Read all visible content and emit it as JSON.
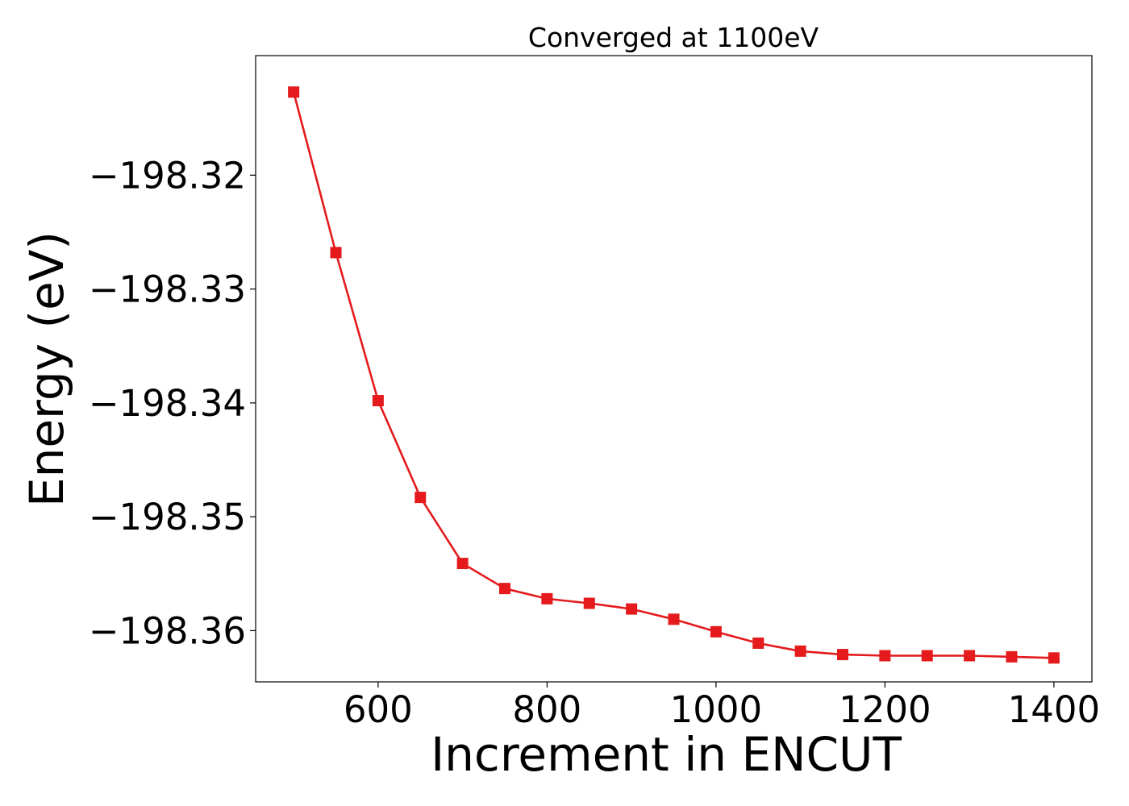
{
  "chart_data": {
    "type": "line",
    "title": "Converged at 1100eV",
    "xlabel": "Increment in ENCUT",
    "ylabel": "Energy (eV)",
    "xlim": [
      455,
      1445
    ],
    "ylim": [
      -198.3645,
      -198.3095
    ],
    "x_ticks": [
      600,
      800,
      1000,
      1200,
      1400
    ],
    "x_tick_labels": [
      "600",
      "800",
      "1000",
      "1200",
      "1400"
    ],
    "y_ticks": [
      -198.32,
      -198.33,
      -198.34,
      -198.35,
      -198.36
    ],
    "y_tick_labels": [
      "−198.32",
      "−198.33",
      "−198.34",
      "−198.35",
      "−198.36"
    ],
    "grid": false,
    "series": [
      {
        "color": "#e41a1c",
        "marker": "square",
        "x": [
          500,
          550,
          600,
          650,
          700,
          750,
          800,
          850,
          900,
          950,
          1000,
          1050,
          1100,
          1150,
          1200,
          1250,
          1300,
          1350,
          1400
        ],
        "y": [
          -198.3127,
          -198.3268,
          -198.3398,
          -198.3483,
          -198.3541,
          -198.3563,
          -198.3572,
          -198.3576,
          -198.3581,
          -198.359,
          -198.3601,
          -198.3611,
          -198.3618,
          -198.3621,
          -198.3622,
          -198.3622,
          -198.3622,
          -198.3623,
          -198.3624
        ]
      }
    ]
  }
}
